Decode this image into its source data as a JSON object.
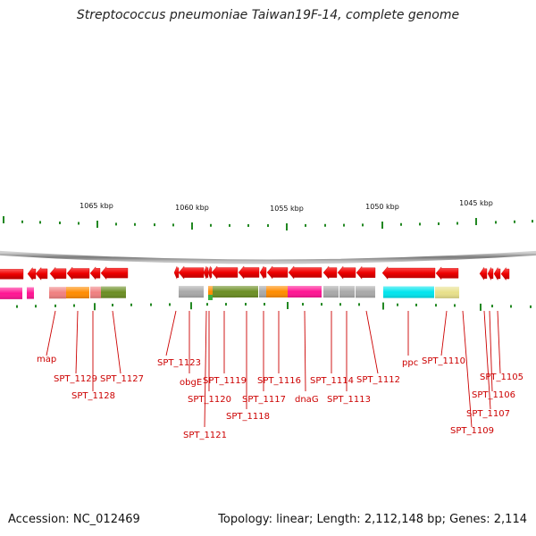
{
  "title": "Streptococcus pneumoniae Taiwan19F-14, complete genome",
  "accession_label": "Accession:",
  "accession": "NC_012469",
  "topology_label": "Topology:",
  "topology": "linear",
  "length_label": "Length:",
  "length": "2,112,148 bp",
  "genes_label": "Genes:",
  "genes": "2,114",
  "scale_labels": [
    "1065 kbp",
    "1060 kbp",
    "1055 kbp",
    "1050 kbp",
    "1045 kbp"
  ],
  "gene_labels": [
    "map",
    "SPT_1129",
    "SPT_1128",
    "SPT_1127",
    "SPT_1123",
    "obgE",
    "SPT_1121",
    "SPT_1120",
    "SPT_1119",
    "SPT_1118",
    "SPT_1117",
    "SPT_1116",
    "dnaG",
    "SPT_1114",
    "SPT_1113",
    "SPT_1112",
    "ppc",
    "SPT_1110",
    "SPT_1109",
    "SPT_1107",
    "SPT_1106",
    "SPT_1105"
  ],
  "colors": {
    "gene_arrow": "#ee1111",
    "label_text": "#cc0000",
    "tick": "#228822",
    "backbone": "#888888",
    "cog_colors": [
      "#ff1493",
      "#f08080",
      "#ff8c00",
      "#6b8e23",
      "#a9a9a9",
      "#00e5ee",
      "#e8e08a"
    ]
  }
}
